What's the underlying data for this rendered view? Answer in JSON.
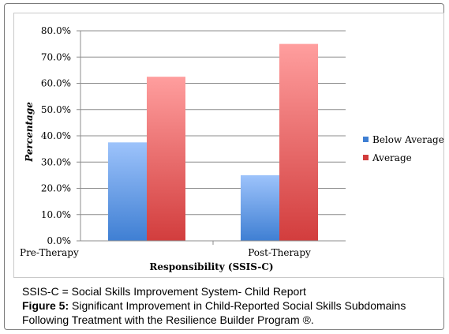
{
  "chart_data": {
    "type": "bar",
    "categories": [
      "Pre-Therapy",
      "Post-Therapy"
    ],
    "series": [
      {
        "name": "Below Average",
        "values": [
          37.5,
          25.0
        ]
      },
      {
        "name": "Average",
        "values": [
          62.5,
          75.0
        ]
      }
    ],
    "xlabel": "Responsibility (SSIS-C)",
    "ylabel": "Percentage",
    "ylim": [
      0,
      80
    ],
    "yticks": [
      "0.0%",
      "10.0%",
      "20.0%",
      "30.0%",
      "40.0%",
      "50.0%",
      "60.0%",
      "70.0%",
      "80.0%"
    ],
    "grid": true,
    "legend_position": "right",
    "colors": {
      "Below Average": {
        "top": "#9dc3fb",
        "bottom": "#3f7fd3"
      },
      "Average": {
        "top": "#ff9e9e",
        "bottom": "#d23d3d"
      }
    }
  },
  "caption": {
    "abbrev_note": "SSIS-C = Social Skills Improvement System- Child Report",
    "figure_label": "Figure 5:",
    "figure_text": " Significant Improvement in Child-Reported Social Skills Subdomains Following Treatment with the Resilience Builder Program ®."
  }
}
